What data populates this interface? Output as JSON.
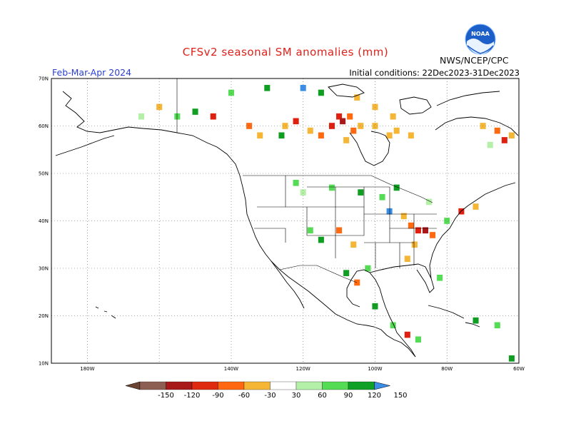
{
  "title": "CFSv2 seasonal SM anomalies (mm)",
  "season": "Feb-Mar-Apr 2024",
  "initial_conditions": "Initial conditions: 22Dec2023-31Dec2023",
  "org": "NWS/NCEP/CPC",
  "logo_text": "NOAA",
  "map": {
    "lat_labels": [
      "70N",
      "60N",
      "50N",
      "40N",
      "30N",
      "20N",
      "10N"
    ],
    "lon_labels": [
      "180W",
      "140W",
      "120W",
      "100W",
      "80W",
      "60W"
    ],
    "lat_range": [
      10,
      70
    ],
    "lon_range": [
      -190,
      -60
    ],
    "grid": "dotted"
  },
  "colors": {
    "-150": "#7a4a3a",
    "-120": "#a8191a",
    "-90": "#e0200f",
    "-60": "#ff6a10",
    "-30": "#f5b535",
    "30": "#b4f0a8",
    "60": "#55dc55",
    "90": "#0f9e22",
    "120": "#149a30",
    "150": "#3a8ee8",
    "land": "#ffffff",
    "coast": "#000000"
  },
  "colorbar": {
    "labels": [
      "-150",
      "-120",
      "-90",
      "-60",
      "-30",
      "30",
      "60",
      "90",
      "120",
      "150"
    ],
    "bins": [
      {
        "label": "< -150",
        "color": "#6b4332"
      },
      {
        "label": "-150 to -120",
        "color": "#8d5f52"
      },
      {
        "label": "-120 to -90",
        "color": "#a8191a"
      },
      {
        "label": "-90 to -60",
        "color": "#e02a0f"
      },
      {
        "label": "-60 to -30",
        "color": "#ff6810"
      },
      {
        "label": "-30 to 30",
        "color": "#f5b535"
      },
      {
        "label": "30 to 60",
        "color": "#ffffff"
      },
      {
        "label": "60 to 90",
        "color": "#b4f0a8"
      },
      {
        "label": "90 to 120",
        "color": "#55dc55"
      },
      {
        "label": "120 to 150",
        "color": "#0fa028"
      },
      {
        "label": "> 150",
        "color": "#3a8ee8"
      }
    ]
  },
  "anomaly_cells": [
    {
      "lon": -110,
      "lat": 62,
      "v": -90
    },
    {
      "lon": -109,
      "lat": 61,
      "v": -120
    },
    {
      "lon": -107,
      "lat": 62,
      "v": -60
    },
    {
      "lon": -112,
      "lat": 60,
      "v": -90
    },
    {
      "lon": -106,
      "lat": 59,
      "v": -60
    },
    {
      "lon": -104,
      "lat": 60,
      "v": -30
    },
    {
      "lon": -100,
      "lat": 60,
      "v": -30
    },
    {
      "lon": -96,
      "lat": 58,
      "v": -30
    },
    {
      "lon": -94,
      "lat": 59,
      "v": -30
    },
    {
      "lon": -108,
      "lat": 57,
      "v": -30
    },
    {
      "lon": -115,
      "lat": 58,
      "v": -60
    },
    {
      "lon": -118,
      "lat": 59,
      "v": -30
    },
    {
      "lon": -122,
      "lat": 61,
      "v": -90
    },
    {
      "lon": -125,
      "lat": 60,
      "v": -30
    },
    {
      "lon": -126,
      "lat": 58,
      "v": 90
    },
    {
      "lon": -132,
      "lat": 58,
      "v": -30
    },
    {
      "lon": -135,
      "lat": 60,
      "v": -60
    },
    {
      "lon": -145,
      "lat": 62,
      "v": -90
    },
    {
      "lon": -150,
      "lat": 63,
      "v": 90
    },
    {
      "lon": -155,
      "lat": 62,
      "v": 60
    },
    {
      "lon": -160,
      "lat": 64,
      "v": -30
    },
    {
      "lon": -165,
      "lat": 62,
      "v": 30
    },
    {
      "lon": -140,
      "lat": 67,
      "v": 60
    },
    {
      "lon": -130,
      "lat": 68,
      "v": 90
    },
    {
      "lon": -120,
      "lat": 68,
      "v": 150
    },
    {
      "lon": -115,
      "lat": 67,
      "v": 90
    },
    {
      "lon": -105,
      "lat": 66,
      "v": -30
    },
    {
      "lon": -100,
      "lat": 64,
      "v": -30
    },
    {
      "lon": -95,
      "lat": 62,
      "v": -30
    },
    {
      "lon": -90,
      "lat": 58,
      "v": -30
    },
    {
      "lon": -70,
      "lat": 60,
      "v": -30
    },
    {
      "lon": -66,
      "lat": 59,
      "v": -60
    },
    {
      "lon": -64,
      "lat": 57,
      "v": -90
    },
    {
      "lon": -62,
      "lat": 58,
      "v": -30
    },
    {
      "lon": -68,
      "lat": 56,
      "v": 30
    },
    {
      "lon": -122,
      "lat": 48,
      "v": 60
    },
    {
      "lon": -120,
      "lat": 46,
      "v": 30
    },
    {
      "lon": -112,
      "lat": 47,
      "v": 60
    },
    {
      "lon": -104,
      "lat": 46,
      "v": 90
    },
    {
      "lon": -98,
      "lat": 45,
      "v": 60
    },
    {
      "lon": -94,
      "lat": 47,
      "v": 90
    },
    {
      "lon": -96,
      "lat": 42,
      "v": 150
    },
    {
      "lon": -92,
      "lat": 41,
      "v": -30
    },
    {
      "lon": -90,
      "lat": 39,
      "v": -60
    },
    {
      "lon": -88,
      "lat": 38,
      "v": -90
    },
    {
      "lon": -86,
      "lat": 38,
      "v": -120
    },
    {
      "lon": -84,
      "lat": 37,
      "v": -60
    },
    {
      "lon": -89,
      "lat": 35,
      "v": -30
    },
    {
      "lon": -91,
      "lat": 32,
      "v": -30
    },
    {
      "lon": -80,
      "lat": 40,
      "v": 60
    },
    {
      "lon": -76,
      "lat": 42,
      "v": -90
    },
    {
      "lon": -72,
      "lat": 43,
      "v": -30
    },
    {
      "lon": -85,
      "lat": 44,
      "v": 30
    },
    {
      "lon": -106,
      "lat": 35,
      "v": -30
    },
    {
      "lon": -110,
      "lat": 38,
      "v": -60
    },
    {
      "lon": -115,
      "lat": 36,
      "v": 90
    },
    {
      "lon": -118,
      "lat": 38,
      "v": 60
    },
    {
      "lon": -102,
      "lat": 30,
      "v": 60
    },
    {
      "lon": -105,
      "lat": 27,
      "v": -60
    },
    {
      "lon": -108,
      "lat": 29,
      "v": 90
    },
    {
      "lon": -100,
      "lat": 22,
      "v": 90
    },
    {
      "lon": -95,
      "lat": 18,
      "v": 60
    },
    {
      "lon": -91,
      "lat": 16,
      "v": -90
    },
    {
      "lon": -88,
      "lat": 15,
      "v": 60
    },
    {
      "lon": -82,
      "lat": 28,
      "v": 60
    },
    {
      "lon": -66,
      "lat": 18,
      "v": 60
    },
    {
      "lon": -72,
      "lat": 19,
      "v": 90
    },
    {
      "lon": -62,
      "lat": 11,
      "v": 90
    }
  ]
}
